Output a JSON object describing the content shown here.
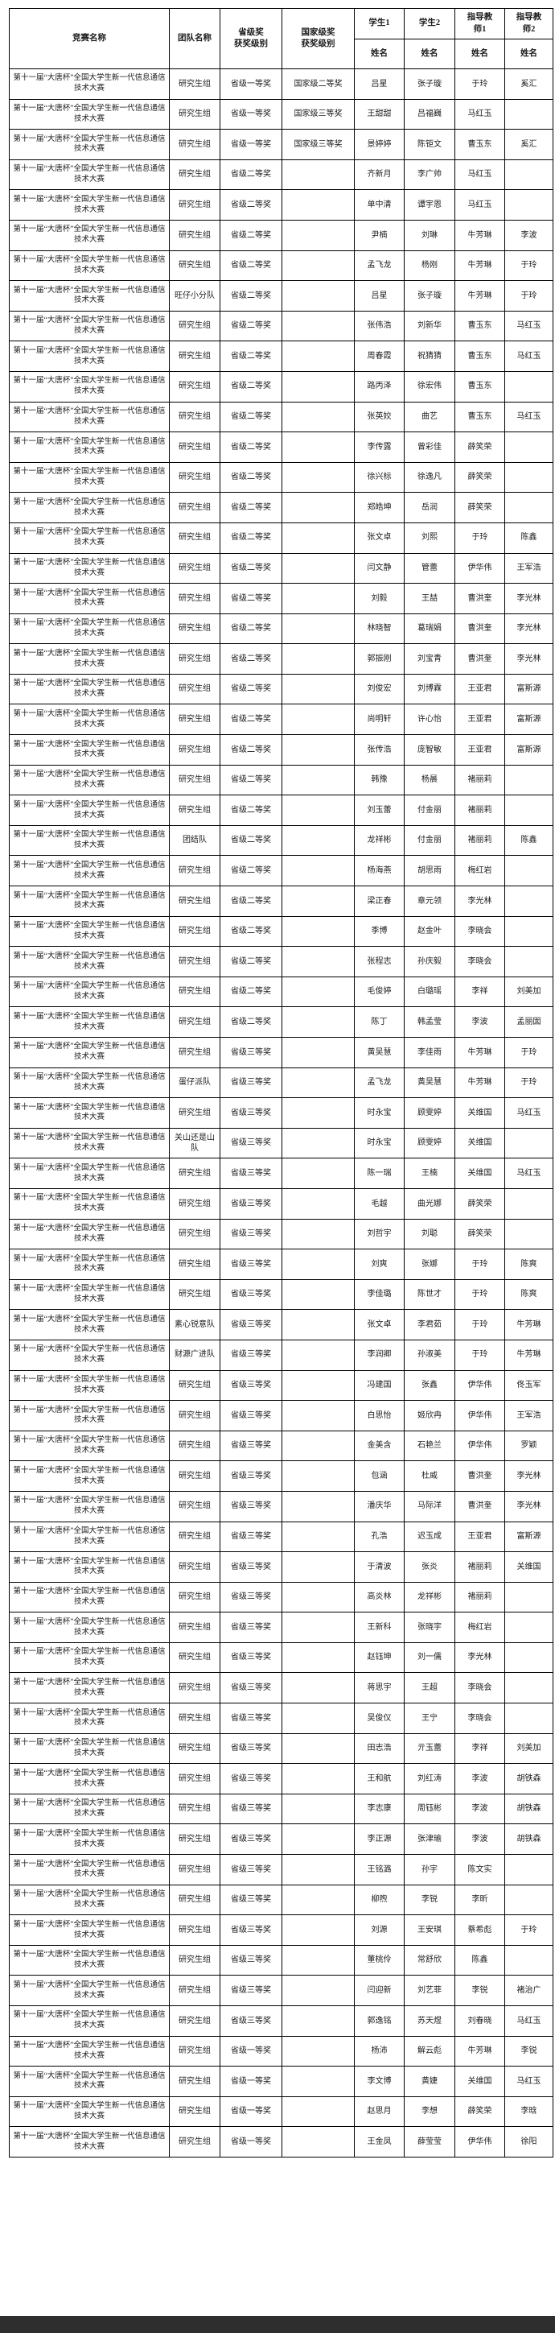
{
  "table": {
    "headers": {
      "competition": "竞赛名称",
      "team": "团队名称",
      "provincial": "省级奖\n获奖级别",
      "national": "国家级奖\n获奖级别",
      "student1": "学生1",
      "student2": "学生2",
      "advisor1": "指导教\n师1",
      "advisor2": "指导教\n师2",
      "name": "姓名"
    },
    "column_keys": [
      "competition",
      "team",
      "provincial-award",
      "national-award",
      "student1-name",
      "student2-name",
      "advisor1-name",
      "advisor2-name"
    ],
    "competition_name": "第十一届“大唐杯”全国大学生新一代信息通信技术大赛",
    "rows": [
      [
        "研究生组",
        "省级一等奖",
        "国家级二等奖",
        "吕星",
        "张子璇",
        "于玲",
        "奚汇"
      ],
      [
        "研究生组",
        "省级一等奖",
        "国家级三等奖",
        "王甜甜",
        "吕福巍",
        "马红玉",
        ""
      ],
      [
        "研究生组",
        "省级一等奖",
        "国家级三等奖",
        "景婷婷",
        "陈钜文",
        "曹玉东",
        "奚汇"
      ],
      [
        "研究生组",
        "省级二等奖",
        "",
        "齐新月",
        "李广帅",
        "马红玉",
        ""
      ],
      [
        "研究生组",
        "省级二等奖",
        "",
        "单中清",
        "谭宇恩",
        "马红玉",
        ""
      ],
      [
        "研究生组",
        "省级二等奖",
        "",
        "尹楠",
        "刘琳",
        "牛芳琳",
        "李波"
      ],
      [
        "研究生组",
        "省级二等奖",
        "",
        "孟飞龙",
        "杨刚",
        "牛芳琳",
        "于玲"
      ],
      [
        "旺仔小分队",
        "省级二等奖",
        "",
        "吕星",
        "张子璇",
        "牛芳琳",
        "于玲"
      ],
      [
        "研究生组",
        "省级二等奖",
        "",
        "张伟浩",
        "刘新华",
        "曹玉东",
        "马红玉"
      ],
      [
        "研究生组",
        "省级二等奖",
        "",
        "周春霞",
        "祝猜猜",
        "曹玉东",
        "马红玉"
      ],
      [
        "研究生组",
        "省级二等奖",
        "",
        "路丙泽",
        "徐宏伟",
        "曹玉东",
        ""
      ],
      [
        "研究生组",
        "省级二等奖",
        "",
        "张英姣",
        "曲艺",
        "曹玉东",
        "马红玉"
      ],
      [
        "研究生组",
        "省级二等奖",
        "",
        "李传露",
        "曾彩佳",
        "薛笑荣",
        ""
      ],
      [
        "研究生组",
        "省级二等奖",
        "",
        "徐兴标",
        "徐逸凡",
        "薛笑荣",
        ""
      ],
      [
        "研究生组",
        "省级二等奖",
        "",
        "郑皓坤",
        "岳润",
        "薛笑荣",
        ""
      ],
      [
        "研究生组",
        "省级二等奖",
        "",
        "张文卓",
        "刘熙",
        "于玲",
        "陈鑫"
      ],
      [
        "研究生组",
        "省级二等奖",
        "",
        "闫文静",
        "管蕾",
        "伊华伟",
        "王军浩"
      ],
      [
        "研究生组",
        "省级二等奖",
        "",
        "刘毅",
        "王喆",
        "曹洪奎",
        "李光林"
      ],
      [
        "研究生组",
        "省级二等奖",
        "",
        "林晓智",
        "葛瑞娟",
        "曹洪奎",
        "李光林"
      ],
      [
        "研究生组",
        "省级二等奖",
        "",
        "郭振刚",
        "刘宝青",
        "曹洪奎",
        "李光林"
      ],
      [
        "研究生组",
        "省级二等奖",
        "",
        "刘俊宏",
        "刘博霖",
        "王亚君",
        "富斯源"
      ],
      [
        "研究生组",
        "省级二等奖",
        "",
        "尚明轩",
        "许心怡",
        "王亚君",
        "富斯源"
      ],
      [
        "研究生组",
        "省级二等奖",
        "",
        "张传浩",
        "庞智敏",
        "王亚君",
        "富斯源"
      ],
      [
        "研究生组",
        "省级二等奖",
        "",
        "韩豫",
        "杨晨",
        "褚丽莉",
        ""
      ],
      [
        "研究生组",
        "省级二等奖",
        "",
        "刘玉蕾",
        "付金丽",
        "褚丽莉",
        ""
      ],
      [
        "团结队",
        "省级二等奖",
        "",
        "龙祥彬",
        "付金丽",
        "褚丽莉",
        "陈鑫"
      ],
      [
        "研究生组",
        "省级二等奖",
        "",
        "杨海燕",
        "胡思雨",
        "梅红岩",
        ""
      ],
      [
        "研究生组",
        "省级二等奖",
        "",
        "梁正春",
        "章元领",
        "李光林",
        ""
      ],
      [
        "研究生组",
        "省级二等奖",
        "",
        "季博",
        "赵金叶",
        "李晓会",
        ""
      ],
      [
        "研究生组",
        "省级二等奖",
        "",
        "张程志",
        "孙庆毅",
        "李晓会",
        ""
      ],
      [
        "研究生组",
        "省级二等奖",
        "",
        "毛俊婷",
        "白璐瑶",
        "李祥",
        "刘美加"
      ],
      [
        "研究生组",
        "省级二等奖",
        "",
        "陈丁",
        "韩孟莹",
        "李波",
        "孟丽囡"
      ],
      [
        "研究生组",
        "省级三等奖",
        "",
        "黄吴慧",
        "李佳雨",
        "牛芳琳",
        "于玲"
      ],
      [
        "蛋仔派队",
        "省级三等奖",
        "",
        "孟飞龙",
        "黄吴慧",
        "牛芳琳",
        "于玲"
      ],
      [
        "研究生组",
        "省级三等奖",
        "",
        "时永宝",
        "顾雯婷",
        "关维国",
        "马红玉"
      ],
      [
        "关山还是山队",
        "省级三等奖",
        "",
        "时永宝",
        "顾雯婷",
        "关维国",
        ""
      ],
      [
        "研究生组",
        "省级三等奖",
        "",
        "陈一瑞",
        "王楠",
        "关维国",
        "马红玉"
      ],
      [
        "研究生组",
        "省级三等奖",
        "",
        "毛越",
        "曲光娜",
        "薛笑荣",
        ""
      ],
      [
        "研究生组",
        "省级三等奖",
        "",
        "刘哲宇",
        "刘聪",
        "薛笑荣",
        ""
      ],
      [
        "研究生组",
        "省级三等奖",
        "",
        "刘爽",
        "张娜",
        "于玲",
        "陈爽"
      ],
      [
        "研究生组",
        "省级三等奖",
        "",
        "李佳璐",
        "陈世才",
        "于玲",
        "陈爽"
      ],
      [
        "素心锐意队",
        "省级三等奖",
        "",
        "张文卓",
        "李君茹",
        "于玲",
        "牛芳琳"
      ],
      [
        "财源广进队",
        "省级三等奖",
        "",
        "李润卿",
        "孙淑美",
        "于玲",
        "牛芳琳"
      ],
      [
        "研究生组",
        "省级三等奖",
        "",
        "冯建国",
        "张鑫",
        "伊华伟",
        "佟玉军"
      ],
      [
        "研究生组",
        "省级三等奖",
        "",
        "白思怡",
        "姬欣冉",
        "伊华伟",
        "王军浩"
      ],
      [
        "研究生组",
        "省级三等奖",
        "",
        "金美含",
        "石艳兰",
        "伊华伟",
        "罗颖"
      ],
      [
        "研究生组",
        "省级三等奖",
        "",
        "包涵",
        "杜威",
        "曹洪奎",
        "李光林"
      ],
      [
        "研究生组",
        "省级三等奖",
        "",
        "潘庆华",
        "马际洋",
        "曹洪奎",
        "李光林"
      ],
      [
        "研究生组",
        "省级三等奖",
        "",
        "孔浩",
        "迟玉成",
        "王亚君",
        "富斯源"
      ],
      [
        "研究生组",
        "省级三等奖",
        "",
        "于清波",
        "张炎",
        "褚丽莉",
        "关维国"
      ],
      [
        "研究生组",
        "省级三等奖",
        "",
        "高炎林",
        "龙祥彬",
        "褚丽莉",
        ""
      ],
      [
        "研究生组",
        "省级三等奖",
        "",
        "王新科",
        "张晓宇",
        "梅红岩",
        ""
      ],
      [
        "研究生组",
        "省级三等奖",
        "",
        "赵钰坤",
        "刘一儒",
        "李光林",
        ""
      ],
      [
        "研究生组",
        "省级三等奖",
        "",
        "蒋思宇",
        "王超",
        "李晓会",
        ""
      ],
      [
        "研究生组",
        "省级三等奖",
        "",
        "吴俊仪",
        "王宁",
        "李晓会",
        ""
      ],
      [
        "研究生组",
        "省级三等奖",
        "",
        "田志浩",
        "亓玉蕾",
        "李祥",
        "刘美加"
      ],
      [
        "研究生组",
        "省级三等奖",
        "",
        "王和航",
        "刘红涛",
        "李波",
        "胡铁森"
      ],
      [
        "研究生组",
        "省级三等奖",
        "",
        "李志康",
        "周钰彬",
        "李波",
        "胡铁森"
      ],
      [
        "研究生组",
        "省级三等奖",
        "",
        "李正源",
        "张津瑜",
        "李波",
        "胡铁森"
      ],
      [
        "研究生组",
        "省级三等奖",
        "",
        "王铭潞",
        "孙宇",
        "陈文实",
        ""
      ],
      [
        "研究生组",
        "省级三等奖",
        "",
        "柳煦",
        "李锐",
        "李昕",
        ""
      ],
      [
        "研究生组",
        "省级三等奖",
        "",
        "刘源",
        "王安琪",
        "蔡希彪",
        "于玲"
      ],
      [
        "研究生组",
        "省级三等奖",
        "",
        "董桃伶",
        "常舒欣",
        "陈鑫",
        ""
      ],
      [
        "研究生组",
        "省级三等奖",
        "",
        "闫迎新",
        "刘艺菲",
        "李锐",
        "褚治广"
      ],
      [
        "研究生组",
        "省级三等奖",
        "",
        "郭逸铭",
        "苏天煜",
        "刘春晓",
        "马红玉"
      ],
      [
        "研究生组",
        "省级一等奖",
        "",
        "杨沛",
        "解云彪",
        "牛芳琳",
        "李锐"
      ],
      [
        "研究生组",
        "省级一等奖",
        "",
        "李文博",
        "黄婕",
        "关维国",
        "马红玉"
      ],
      [
        "研究生组",
        "省级一等奖",
        "",
        "赵思月",
        "李想",
        "薛笑荣",
        "李晗"
      ],
      [
        "研究生组",
        "省级一等奖",
        "",
        "王金凤",
        "薛莹莹",
        "伊华伟",
        "徐阳"
      ]
    ]
  },
  "footer": {
    "bar_color": "#2e2e2e"
  }
}
